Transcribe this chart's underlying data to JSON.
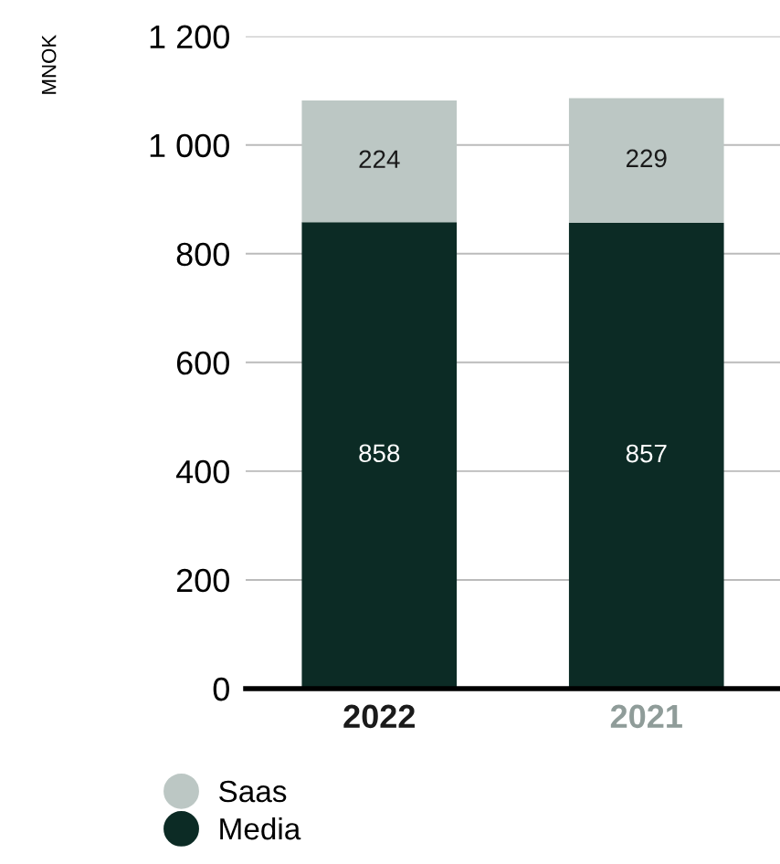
{
  "chart_data": {
    "type": "bar",
    "stacked": true,
    "ylabel": "MNOK",
    "categories": [
      "2022",
      "2021"
    ],
    "series": [
      {
        "name": "Media",
        "color": "#0c2b25",
        "values": [
          858,
          857
        ]
      },
      {
        "name": "Saas",
        "color": "#bcc7c4",
        "values": [
          224,
          229
        ]
      }
    ],
    "ylim": [
      0,
      1200
    ],
    "yticks": [
      0,
      200,
      400,
      600,
      800,
      {
        "value": 1000,
        "label": "1 000"
      },
      {
        "value": 1200,
        "label": "1 200"
      }
    ],
    "grid": "y",
    "legend": "bottom left",
    "data_labels": true
  }
}
